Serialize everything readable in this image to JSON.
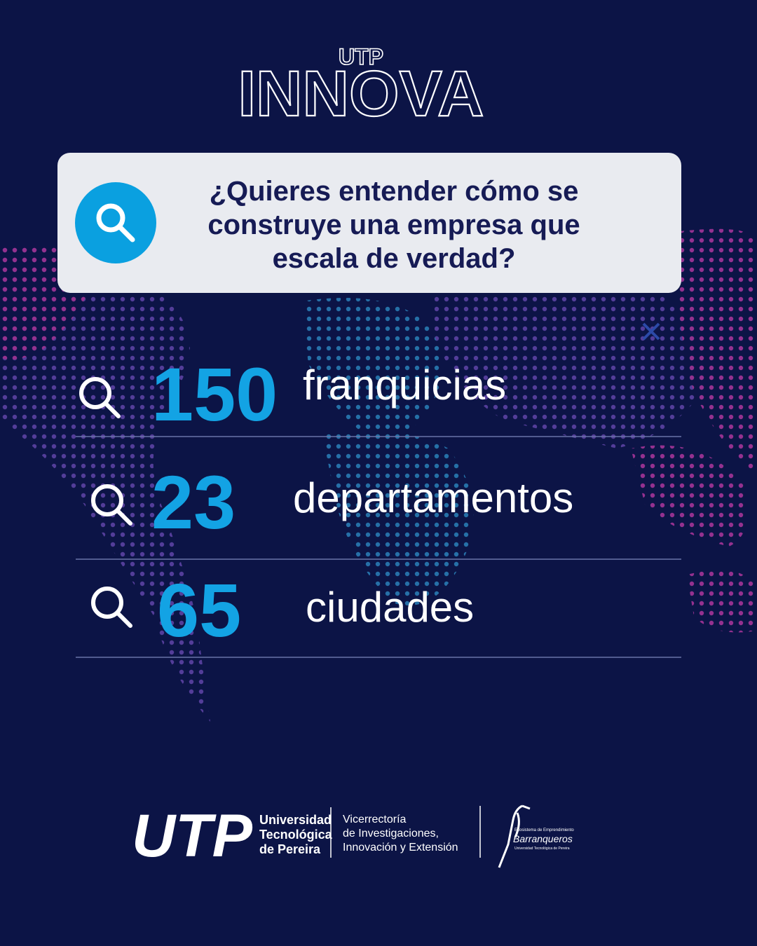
{
  "header": {
    "brand_small": "UTP",
    "brand_large": "INNOVA"
  },
  "question": {
    "lines": [
      "¿Quieres entender cómo se",
      "construye una empresa que",
      "escala de verdad?"
    ]
  },
  "stats": [
    {
      "value": 150,
      "label": "franquicias"
    },
    {
      "value": 23,
      "label": "departamentos"
    },
    {
      "value": 65,
      "label": "ciudades"
    }
  ],
  "footer": {
    "logo": "UTP",
    "university": [
      "Universidad",
      "Tecnológica",
      "de Pereira"
    ],
    "office": [
      "Vicerrectoría",
      "de Investigaciones,",
      "Innovación y Extensión"
    ],
    "partner": {
      "top": "Ecosistema de Emprendimiento",
      "name": "Barranqueros",
      "bottom": "Universidad Tecnológica de Pereira"
    }
  }
}
